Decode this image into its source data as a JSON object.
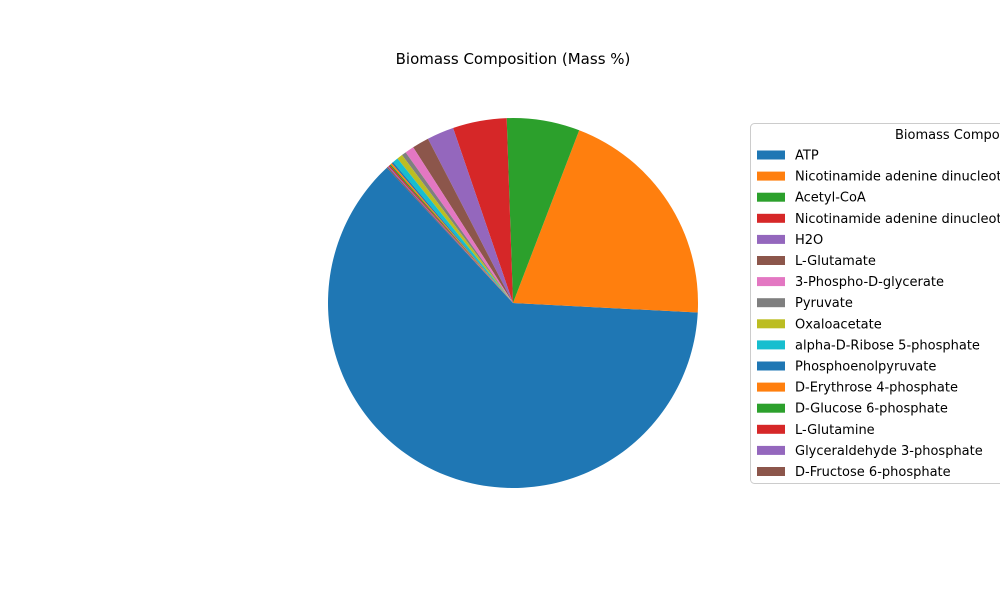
{
  "chart_data": {
    "type": "pie",
    "title": "Biomass Composition (Mass %)",
    "legend_title": "Biomass Composition",
    "legend_position": "right",
    "start_angle_deg": 133,
    "direction": "counterclockwise",
    "labels": [
      "ATP",
      "Nicotinamide adenine dinucleotide phosphate - reduced",
      "Acetyl-CoA",
      "Nicotinamide adenine dinucleotide",
      "H2O",
      "L-Glutamate",
      "3-Phospho-D-glycerate",
      "Pyruvate",
      "Oxaloacetate",
      "alpha-D-Ribose 5-phosphate",
      "Phosphoenolpyruvate",
      "D-Erythrose 4-phosphate",
      "D-Glucose 6-phosphate",
      "L-Glutamine",
      "Glyceraldehyde 3-phosphate",
      "D-Fructose 6-phosphate"
    ],
    "values": [
      63.5,
      20.4,
      6.5,
      4.8,
      2.4,
      1.5,
      0.8,
      0.4,
      0.5,
      0.5,
      0.15,
      0.14,
      0.12,
      0.12,
      0.1,
      0.1
    ],
    "colors": [
      "#1f77b4",
      "#ff7f0e",
      "#2ca02c",
      "#d62728",
      "#9467bd",
      "#8c564b",
      "#e377c2",
      "#7f7f7f",
      "#bcbd22",
      "#17becf",
      "#1f77b4",
      "#ff7f0e",
      "#2ca02c",
      "#d62728",
      "#9467bd",
      "#8c564b"
    ]
  }
}
